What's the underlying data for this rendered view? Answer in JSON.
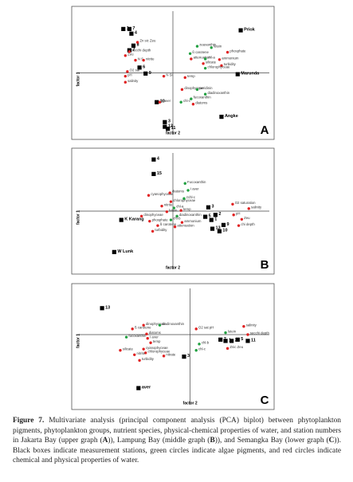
{
  "chart_data": [
    {
      "type": "scatter",
      "panel": "A",
      "ylabel": "factor 1",
      "xlabel": "factor 2",
      "xlim": [
        -1,
        1
      ],
      "ylim": [
        -1,
        1
      ],
      "series": [
        {
          "marker": "square",
          "color": "#000000",
          "points": [
            {
              "label": "1",
              "x": -0.49,
              "y": 0.66
            },
            {
              "label": "7",
              "x": -0.43,
              "y": 0.66
            },
            {
              "label": "4",
              "x": -0.41,
              "y": 0.59
            },
            {
              "label": "8",
              "x": -0.39,
              "y": 0.41
            },
            {
              "label": "2",
              "x": -0.43,
              "y": 0.34
            },
            {
              "label": "6",
              "x": -0.33,
              "y": 0.08
            },
            {
              "label": "9",
              "x": -0.27,
              "y": -0.01
            },
            {
              "label": "Priok",
              "x": 0.67,
              "y": 0.64
            },
            {
              "label": "Marunda",
              "x": 0.64,
              "y": -0.02
            },
            {
              "label": "10",
              "x": -0.16,
              "y": -0.44
            },
            {
              "label": "Angke",
              "x": 0.48,
              "y": -0.66
            },
            {
              "label": "3",
              "x": -0.08,
              "y": -0.74
            },
            {
              "label": "12",
              "x": -0.08,
              "y": -0.81
            },
            {
              "label": "11",
              "x": -0.05,
              "y": -0.84
            }
          ]
        },
        {
          "marker": "circle",
          "color": "#e02020",
          "points": [
            {
              "label": "Zn sic Zeu",
              "x": -0.35,
              "y": 0.46
            },
            {
              "label": "secchi depth",
              "x": -0.43,
              "y": 0.32
            },
            {
              "label": "Zeu",
              "x": -0.47,
              "y": 0.26
            },
            {
              "label": "N S",
              "x": -0.37,
              "y": 0.19
            },
            {
              "label": "nitrite",
              "x": -0.29,
              "y": 0.19
            },
            {
              "label": "O2 sat",
              "x": -0.45,
              "y": 0.02
            },
            {
              "label": "pH",
              "x": -0.47,
              "y": -0.05
            },
            {
              "label": "salinity",
              "x": -0.47,
              "y": -0.14
            },
            {
              "label": "N Si",
              "x": -0.09,
              "y": -0.05
            },
            {
              "label": "temp",
              "x": 0.12,
              "y": -0.07
            },
            {
              "label": "attenuation",
              "x": 0.18,
              "y": 0.21
            },
            {
              "label": "silicate",
              "x": 0.3,
              "y": 0.14
            },
            {
              "label": "ammonium",
              "x": 0.46,
              "y": 0.2
            },
            {
              "label": "turbidity",
              "x": 0.48,
              "y": 0.11
            },
            {
              "label": "phosphate",
              "x": 0.54,
              "y": 0.31
            },
            {
              "label": "I aver",
              "x": -0.13,
              "y": -0.44
            },
            {
              "label": "dinophyceae",
              "x": 0.09,
              "y": -0.25
            },
            {
              "label": "diatoms",
              "x": 0.2,
              "y": -0.47
            }
          ]
        },
        {
          "marker": "circle",
          "color": "#20a040",
          "points": [
            {
              "label": "zeaxanthin",
              "x": 0.24,
              "y": 0.4
            },
            {
              "label": "lutein",
              "x": 0.38,
              "y": 0.38
            },
            {
              "label": "ß carotene",
              "x": 0.17,
              "y": 0.29
            },
            {
              "label": "chl-a",
              "x": 0.32,
              "y": 0.21
            },
            {
              "label": "chlorophyceae",
              "x": 0.32,
              "y": 0.07
            },
            {
              "label": "peridinin",
              "x": 0.24,
              "y": -0.25
            },
            {
              "label": "diadinoxanthin",
              "x": 0.32,
              "y": -0.32
            },
            {
              "label": "fucoxanthin",
              "x": 0.18,
              "y": -0.39
            },
            {
              "label": "chl-c",
              "x": 0.08,
              "y": -0.44
            }
          ]
        }
      ]
    },
    {
      "type": "scatter",
      "panel": "B",
      "ylabel": "factor 1",
      "xlabel": "factor 2",
      "xlim": [
        -1,
        1
      ],
      "ylim": [
        -1,
        1
      ],
      "series": [
        {
          "marker": "square",
          "color": "#000000",
          "points": [
            {
              "label": "4",
              "x": -0.19,
              "y": 0.82
            },
            {
              "label": "15",
              "x": -0.19,
              "y": 0.59
            },
            {
              "label": "K Karang",
              "x": -0.51,
              "y": -0.14
            },
            {
              "label": "W Lunk",
              "x": -0.58,
              "y": -0.65
            },
            {
              "label": "3",
              "x": 0.35,
              "y": 0.06
            },
            {
              "label": "5",
              "x": 0.32,
              "y": -0.09
            },
            {
              "label": "1",
              "x": 0.38,
              "y": -0.14
            },
            {
              "label": "2",
              "x": 0.42,
              "y": -0.06
            },
            {
              "label": "13",
              "x": 0.39,
              "y": -0.28
            },
            {
              "label": "10",
              "x": 0.46,
              "y": -0.32
            },
            {
              "label": "9",
              "x": 0.5,
              "y": -0.22
            }
          ]
        },
        {
          "marker": "circle",
          "color": "#e02020",
          "points": [
            {
              "label": "cyanophyceae",
              "x": -0.24,
              "y": 0.25
            },
            {
              "label": "diatoms",
              "x": -0.03,
              "y": 0.29
            },
            {
              "label": "chlorophyceae",
              "x": -0.02,
              "y": 0.15
            },
            {
              "label": "nitrite",
              "x": -0.11,
              "y": 0.08
            },
            {
              "label": "lutein",
              "x": -0.06,
              "y": -0.01
            },
            {
              "label": "temp",
              "x": 0.08,
              "y": 0.01
            },
            {
              "label": "dinophyceae",
              "x": -0.31,
              "y": -0.08
            },
            {
              "label": "phosphate",
              "x": -0.23,
              "y": -0.16
            },
            {
              "label": "ß carotene",
              "x": -0.15,
              "y": -0.23
            },
            {
              "label": "turbidity",
              "x": -0.2,
              "y": -0.32
            },
            {
              "label": "ammonium",
              "x": 0.09,
              "y": -0.18
            },
            {
              "label": "attenuation",
              "x": 0.02,
              "y": -0.25
            },
            {
              "label": "O2 saturation",
              "x": 0.59,
              "y": 0.11
            },
            {
              "label": "salinity",
              "x": 0.75,
              "y": 0.04
            },
            {
              "label": "pH",
              "x": 0.6,
              "y": -0.06
            },
            {
              "label": "Zeu",
              "x": 0.68,
              "y": -0.13
            },
            {
              "label": "chi depth",
              "x": 0.65,
              "y": -0.23
            }
          ]
        },
        {
          "marker": "circle",
          "color": "#20a040",
          "points": [
            {
              "label": "Fucoxanthin",
              "x": 0.12,
              "y": 0.44
            },
            {
              "label": "I aver",
              "x": 0.15,
              "y": 0.33
            },
            {
              "label": "zchl-c",
              "x": 0.11,
              "y": 0.2
            },
            {
              "label": "chl-a",
              "x": 0.01,
              "y": 0.05
            },
            {
              "label": "diadinoxanthin",
              "x": 0.04,
              "y": -0.08
            },
            {
              "label": "chl-b",
              "x": -0.02,
              "y": -0.14
            }
          ]
        }
      ]
    },
    {
      "type": "scatter",
      "panel": "C",
      "ylabel": "factor 1",
      "xlabel": "factor 2",
      "xlim": [
        -1.17,
        0.83
      ],
      "ylim": [
        -1.19,
        0.81
      ],
      "series": [
        {
          "marker": "square",
          "color": "#000000",
          "points": [
            {
              "label": "13",
              "x": -0.87,
              "y": 0.42
            },
            {
              "label": "aver",
              "x": -0.51,
              "y": -0.85
            },
            {
              "label": "3",
              "x": -0.06,
              "y": -0.35
            },
            {
              "label": "7",
              "x": 0.3,
              "y": -0.08
            },
            {
              "label": "1",
              "x": 0.35,
              "y": -0.1
            },
            {
              "label": "2",
              "x": 0.41,
              "y": -0.1
            },
            {
              "label": "5",
              "x": 0.47,
              "y": -0.08
            },
            {
              "label": "11",
              "x": 0.57,
              "y": -0.1
            }
          ]
        },
        {
          "marker": "circle",
          "color": "#e02020",
          "points": [
            {
              "label": "salinity",
              "x": 0.53,
              "y": 0.13
            },
            {
              "label": "secchi depth",
              "x": 0.57,
              "y": 0.0
            },
            {
              "label": "Znic Zeu",
              "x": 0.37,
              "y": -0.22
            },
            {
              "label": "O2 sat pH",
              "x": 0.06,
              "y": 0.09
            },
            {
              "label": "ß carotene",
              "x": -0.57,
              "y": 0.09
            },
            {
              "label": "diatoms",
              "x": -0.43,
              "y": 0.01
            },
            {
              "label": "dinophyceae",
              "x": -0.46,
              "y": 0.15
            },
            {
              "label": "temp",
              "x": -0.39,
              "y": -0.13
            },
            {
              "label": "I aver",
              "x": -0.42,
              "y": -0.06
            },
            {
              "label": "cyanophyceae",
              "x": -0.46,
              "y": -0.23
            },
            {
              "label": "chlorophyceae",
              "x": -0.44,
              "y": -0.29
            },
            {
              "label": "silicate",
              "x": -0.69,
              "y": -0.25
            },
            {
              "label": "nitrite",
              "x": -0.55,
              "y": -0.32
            },
            {
              "label": "nitrate",
              "x": -0.26,
              "y": -0.34
            },
            {
              "label": "turbidity",
              "x": -0.5,
              "y": -0.41
            }
          ]
        },
        {
          "marker": "circle",
          "color": "#20a040",
          "points": [
            {
              "label": "diadinoxanthin",
              "x": -0.3,
              "y": 0.15
            },
            {
              "label": "fucoxanthin",
              "x": -0.63,
              "y": -0.04
            },
            {
              "label": "chl-b",
              "x": 0.09,
              "y": -0.15
            },
            {
              "label": "chl-c",
              "x": 0.06,
              "y": -0.25
            },
            {
              "label": "lutein",
              "x": 0.35,
              "y": 0.03
            }
          ]
        }
      ]
    }
  ],
  "caption": [
    {
      "text": "Figure 7.",
      "bold": true
    },
    {
      "text": " Multivariate analysis (principal component analysis (PCA) biplot) between phytoplankton pigments, phytoplankton groups, nutrient species, physical-chemical properties of water, and station numbers in Jakarta Bay (upper graph (",
      "bold": false
    },
    {
      "text": "A",
      "bold": true
    },
    {
      "text": ")), Lampung Bay (middle graph (",
      "bold": false
    },
    {
      "text": "B",
      "bold": true
    },
    {
      "text": ")), and Semangka Bay (lower graph (",
      "bold": false
    },
    {
      "text": "C",
      "bold": true
    },
    {
      "text": ")). Black boxes indicate measurement stations, green circles indicate algae pigments, and red circles indicate chemical and physical properties of water.",
      "bold": false
    }
  ]
}
